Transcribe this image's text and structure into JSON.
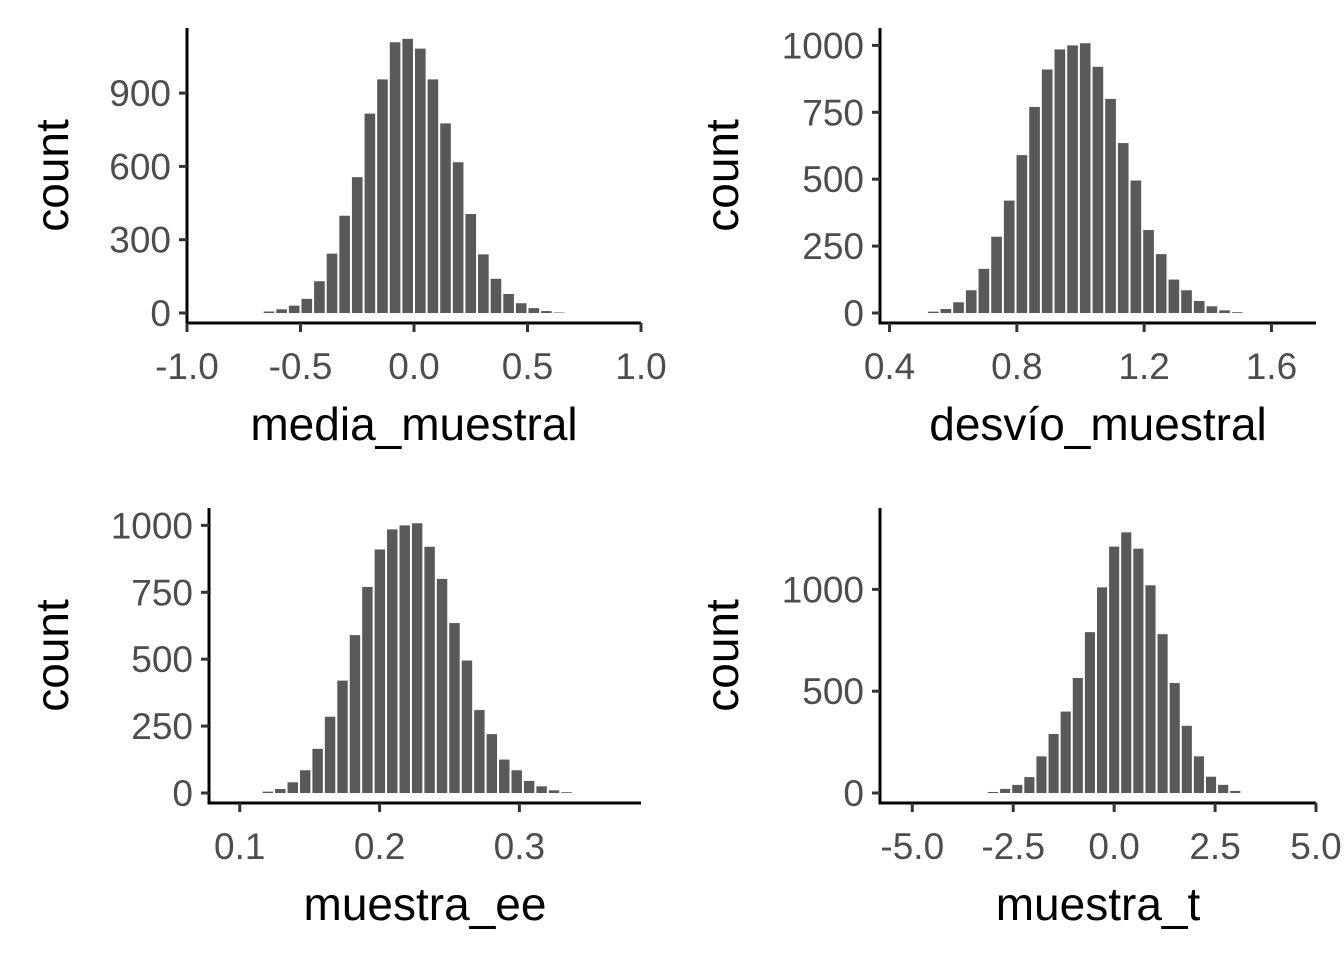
{
  "chart_data": [
    {
      "type": "bar",
      "title": "",
      "xlabel": "media_muestral",
      "ylabel": "count",
      "xlim": [
        -1.0,
        1.0
      ],
      "ylim": [
        0,
        1150
      ],
      "x_ticks": [
        -1.0,
        -0.5,
        0.0,
        0.5,
        1.0
      ],
      "x_tick_labels": [
        "-1.0",
        "-0.5",
        "0.0",
        "0.5",
        "1.0"
      ],
      "y_ticks": [
        0,
        300,
        600,
        900
      ],
      "y_tick_labels": [
        "0",
        "300",
        "600",
        "900"
      ],
      "bin_width": 0.05556,
      "bin_centers": [
        -0.6389,
        -0.5833,
        -0.5278,
        -0.4722,
        -0.4167,
        -0.3611,
        -0.3056,
        -0.25,
        -0.1944,
        -0.1389,
        -0.0833,
        -0.0278,
        0.0278,
        0.0833,
        0.1389,
        0.1944,
        0.25,
        0.3056,
        0.3611,
        0.4167,
        0.4722,
        0.5278,
        0.5833,
        0.6389
      ],
      "values": [
        6,
        15,
        30,
        58,
        130,
        243,
        398,
        556,
        816,
        956,
        1108,
        1122,
        1082,
        956,
        776,
        617,
        405,
        240,
        140,
        78,
        40,
        20,
        8,
        2
      ],
      "grid": false,
      "bar_color": "#595959"
    },
    {
      "type": "bar",
      "title": "",
      "xlabel": "desvío_muestral",
      "ylabel": "count",
      "xlim": [
        0.37,
        1.74
      ],
      "ylim": [
        0,
        1050
      ],
      "x_ticks": [
        0.4,
        0.8,
        1.2,
        1.6
      ],
      "x_tick_labels": [
        "0.4",
        "0.8",
        "1.2",
        "1.6"
      ],
      "y_ticks": [
        0,
        250,
        500,
        750,
        1000
      ],
      "y_tick_labels": [
        "0",
        "250",
        "500",
        "750",
        "1000"
      ],
      "bin_width": 0.0398,
      "bin_centers": [
        0.5372,
        0.577,
        0.6168,
        0.6566,
        0.6964,
        0.7362,
        0.776,
        0.8158,
        0.8556,
        0.8954,
        0.9352,
        0.975,
        1.0148,
        1.0546,
        1.0944,
        1.1342,
        1.174,
        1.2138,
        1.2536,
        1.2934,
        1.3332,
        1.373,
        1.4128,
        1.4526,
        1.4924
      ],
      "values": [
        5,
        15,
        40,
        85,
        165,
        285,
        420,
        590,
        770,
        910,
        985,
        1000,
        1008,
        920,
        800,
        635,
        495,
        310,
        220,
        125,
        85,
        45,
        25,
        10,
        3
      ],
      "grid": false,
      "bar_color": "#595959"
    },
    {
      "type": "bar",
      "title": "",
      "xlabel": "muestra_ee",
      "ylabel": "count",
      "xlim": [
        0.078,
        0.387
      ],
      "ylim": [
        0,
        1050
      ],
      "x_ticks": [
        0.1,
        0.2,
        0.3
      ],
      "x_tick_labels": [
        "0.1",
        "0.2",
        "0.3"
      ],
      "y_ticks": [
        0,
        250,
        500,
        750,
        1000
      ],
      "y_tick_labels": [
        "0",
        "250",
        "500",
        "750",
        "1000"
      ],
      "bin_width": 0.0089,
      "bin_centers": [
        0.1201,
        0.129,
        0.1379,
        0.1468,
        0.1557,
        0.1646,
        0.1735,
        0.1824,
        0.1913,
        0.2002,
        0.2091,
        0.218,
        0.2269,
        0.2358,
        0.2447,
        0.2536,
        0.2625,
        0.2714,
        0.2803,
        0.2892,
        0.2981,
        0.307,
        0.3159,
        0.3248,
        0.3337
      ],
      "values": [
        5,
        15,
        40,
        85,
        165,
        285,
        420,
        590,
        770,
        910,
        985,
        1000,
        1008,
        920,
        800,
        635,
        495,
        310,
        220,
        125,
        85,
        45,
        25,
        10,
        3
      ],
      "grid": false,
      "bar_color": "#595959"
    },
    {
      "type": "bar",
      "title": "",
      "xlabel": "muestra_t",
      "ylabel": "count",
      "xlim": [
        -5.8,
        5.0
      ],
      "ylim": [
        0,
        1380
      ],
      "x_ticks": [
        -5.0,
        -2.5,
        0.0,
        2.5,
        5.0
      ],
      "x_tick_labels": [
        "-5.0",
        "-2.5",
        "0.0",
        "2.5",
        "5.0"
      ],
      "y_ticks": [
        0,
        500,
        1000
      ],
      "y_tick_labels": [
        "0",
        "500",
        "1000"
      ],
      "bin_width": 0.3,
      "bin_centers": [
        -3.0,
        -2.7,
        -2.4,
        -2.1,
        -1.8,
        -1.5,
        -1.2,
        -0.9,
        -0.6,
        -0.3,
        0.0,
        0.3,
        0.6,
        0.9,
        1.2,
        1.5,
        1.8,
        2.1,
        2.4,
        2.7,
        3.0
      ],
      "values": [
        5,
        20,
        40,
        78,
        180,
        290,
        400,
        565,
        790,
        1010,
        1210,
        1280,
        1200,
        1020,
        780,
        540,
        330,
        180,
        80,
        40,
        10
      ],
      "grid": false,
      "bar_color": "#595959"
    }
  ]
}
